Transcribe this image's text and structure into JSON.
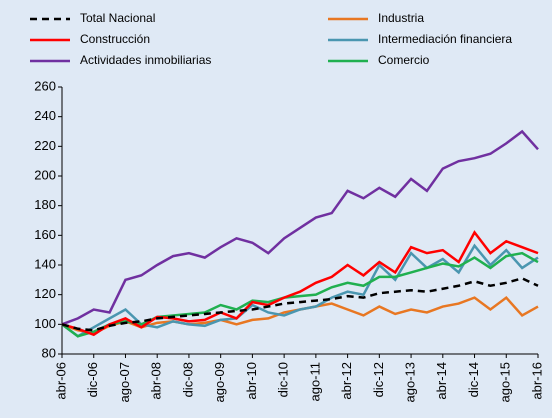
{
  "chart_data": {
    "type": "line",
    "categories": [
      "abr-06",
      null,
      "dic-06",
      null,
      "ago-07",
      null,
      "abr-08",
      null,
      "dic-08",
      null,
      "ago-09",
      null,
      "abr-10",
      null,
      "dic-10",
      null,
      "ago-11",
      null,
      "abr-12",
      null,
      "dic-12",
      null,
      "ago-13",
      null,
      "abr-14",
      null,
      "dic-14",
      null,
      "ago-15",
      null,
      "abr-16"
    ],
    "series": [
      {
        "name": "Total Nacional",
        "color": "#000000",
        "dashed": true,
        "values": [
          100,
          97,
          96,
          99,
          101,
          102,
          104,
          105,
          106,
          107,
          108,
          109,
          110,
          112,
          114,
          115,
          116,
          117,
          119,
          118,
          121,
          122,
          123,
          122,
          124,
          126,
          129,
          126,
          128,
          131,
          126
        ]
      },
      {
        "name": "Industria",
        "color": "#e87722",
        "values": [
          100,
          96,
          94,
          99,
          102,
          98,
          101,
          102,
          100,
          101,
          103,
          100,
          103,
          104,
          108,
          110,
          112,
          114,
          110,
          106,
          112,
          107,
          110,
          108,
          112,
          114,
          118,
          110,
          118,
          106,
          112
        ]
      },
      {
        "name": "Construcción",
        "color": "#ff0000",
        "values": [
          100,
          97,
          93,
          100,
          104,
          98,
          105,
          104,
          102,
          103,
          108,
          104,
          115,
          113,
          118,
          122,
          128,
          132,
          140,
          133,
          142,
          135,
          152,
          148,
          150,
          142,
          162,
          148,
          156,
          152,
          148
        ]
      },
      {
        "name": "Intermediación financiera",
        "color": "#4a96b0",
        "values": [
          100,
          92,
          98,
          104,
          110,
          100,
          98,
          102,
          100,
          99,
          103,
          104,
          113,
          108,
          106,
          110,
          112,
          118,
          122,
          120,
          140,
          130,
          148,
          138,
          144,
          135,
          153,
          140,
          150,
          138,
          145
        ]
      },
      {
        "name": "Actividades inmobiliarias",
        "color": "#7030a0",
        "values": [
          100,
          104,
          110,
          108,
          130,
          133,
          140,
          146,
          148,
          145,
          152,
          158,
          155,
          148,
          158,
          165,
          172,
          175,
          190,
          185,
          192,
          186,
          198,
          190,
          205,
          210,
          212,
          215,
          222,
          230,
          218
        ]
      },
      {
        "name": "Comercio",
        "color": "#20b050",
        "values": [
          100,
          92,
          95,
          100,
          102,
          100,
          105,
          106,
          107,
          108,
          113,
          110,
          116,
          115,
          118,
          119,
          120,
          125,
          128,
          126,
          132,
          132,
          135,
          138,
          141,
          139,
          145,
          138,
          146,
          148,
          142
        ]
      }
    ],
    "ylim": [
      80,
      260
    ],
    "yticks": [
      80,
      100,
      120,
      140,
      160,
      180,
      200,
      220,
      240,
      260
    ],
    "grid": false
  }
}
